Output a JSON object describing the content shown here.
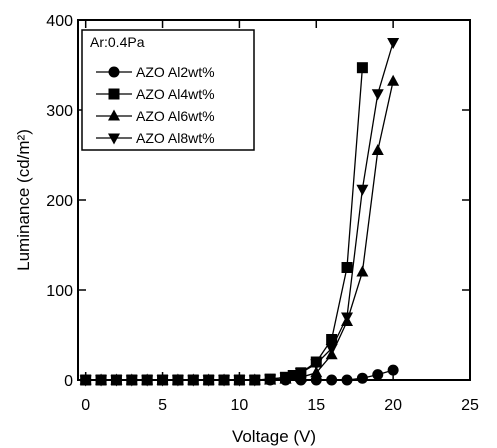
{
  "chart_data": {
    "type": "line",
    "xlabel": "Voltage (V)",
    "ylabel": "Luminance (cd/m²)",
    "xlim": [
      -0.5,
      25
    ],
    "ylim": [
      0,
      400
    ],
    "xticks": [
      0,
      5,
      10,
      15,
      20,
      25
    ],
    "yticks": [
      0,
      100,
      200,
      300,
      400
    ],
    "legend_title": "Ar:0.4Pa",
    "legend_position": "top-left",
    "grid": false,
    "series": [
      {
        "name": "AZO Al2wt%",
        "marker": "circle",
        "x": [
          0,
          1,
          2,
          3,
          4,
          5,
          6,
          7,
          8,
          9,
          10,
          11,
          12,
          13,
          14,
          15,
          16,
          17,
          18,
          19,
          20
        ],
        "y": [
          0,
          0,
          0,
          0,
          0,
          0,
          0,
          0,
          0,
          0,
          0,
          0,
          0,
          0,
          0,
          0,
          0,
          0,
          2,
          6,
          11
        ]
      },
      {
        "name": "AZO Al4wt%",
        "marker": "square",
        "x": [
          0,
          1,
          2,
          3,
          4,
          5,
          6,
          7,
          8,
          9,
          10,
          11,
          12,
          13,
          13.5,
          14,
          15,
          16,
          17,
          18
        ],
        "y": [
          0,
          0,
          0,
          0,
          0,
          0,
          0,
          0,
          0,
          0,
          0,
          0,
          1,
          3,
          5,
          8,
          20,
          45,
          125,
          347
        ]
      },
      {
        "name": "AZO Al6wt%",
        "marker": "triangle-up",
        "x": [
          0,
          1,
          2,
          3,
          4,
          5,
          6,
          7,
          8,
          9,
          10,
          11,
          12,
          13,
          14,
          15,
          16,
          17,
          18,
          19,
          20
        ],
        "y": [
          0,
          0,
          0,
          0,
          0,
          0,
          0,
          0,
          0,
          0,
          0,
          0,
          0,
          1,
          3,
          8,
          28,
          65,
          120,
          255,
          332
        ]
      },
      {
        "name": "AZO Al8wt%",
        "marker": "triangle-down",
        "x": [
          0,
          1,
          2,
          3,
          4,
          5,
          6,
          7,
          8,
          9,
          10,
          11,
          12,
          13,
          14,
          15,
          16,
          17,
          18,
          19,
          20
        ],
        "y": [
          0,
          0,
          0,
          0,
          0,
          0,
          0,
          0,
          0,
          0,
          0,
          0,
          1,
          3,
          8,
          18,
          35,
          70,
          212,
          318,
          375
        ]
      }
    ]
  }
}
